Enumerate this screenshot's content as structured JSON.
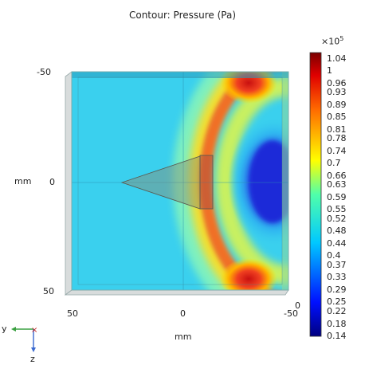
{
  "title": "Contour: Pressure (Pa)",
  "z_axis": {
    "ticks": [
      "-50",
      "0",
      "50"
    ],
    "label": "mm"
  },
  "y_axis": {
    "ticks": [
      "50",
      "0",
      "-50"
    ],
    "label": "mm"
  },
  "depth_tick": "0",
  "colorbar": {
    "exponent_base": "×10",
    "exponent": "5",
    "ticks": [
      "1.04",
      "1",
      "0.96",
      "0.93",
      "0.89",
      "0.85",
      "0.81",
      "0.78",
      "0.74",
      "0.7",
      "0.66",
      "0.63",
      "0.59",
      "0.55",
      "0.52",
      "0.48",
      "0.44",
      "0.4",
      "0.37",
      "0.33",
      "0.29",
      "0.25",
      "0.22",
      "0.18",
      "0.14"
    ],
    "min": 0.14,
    "max": 1.06
  },
  "triad": {
    "horizontal": "y",
    "vertical": "z"
  },
  "colors": {
    "background_field": "#3ad0ee",
    "high": "#c81818",
    "low": "#1a2cd8"
  }
}
